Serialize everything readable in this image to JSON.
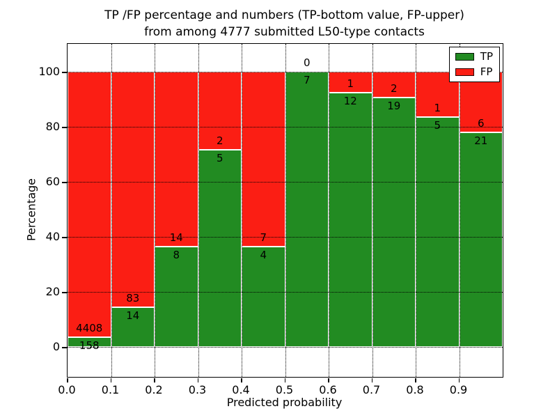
{
  "figure": {
    "title_line1": "TP /FP percentage and numbers (TP-bottom value, FP-upper)",
    "title_line2": "from among 4777 submitted L50-type contacts",
    "xlabel": "Predicted probability",
    "ylabel": "Percentage"
  },
  "chart_data": {
    "type": "bar",
    "stacked": true,
    "title": "TP /FP percentage and numbers (TP-bottom value, FP-upper)\nfrom among 4777 submitted L50-type contacts",
    "xlabel": "Predicted probability",
    "ylabel": "Percentage",
    "total_submitted": 4777,
    "bin_start": [
      0.0,
      0.1,
      0.2,
      0.3,
      0.4,
      0.5,
      0.6,
      0.7,
      0.8,
      0.9
    ],
    "bin_width": 0.1,
    "x_tick_labels": [
      "0.0",
      "0.1",
      "0.2",
      "0.3",
      "0.4",
      "0.5",
      "0.6",
      "0.7",
      "0.8",
      "0.9"
    ],
    "y_tick_values": [
      0,
      20,
      40,
      60,
      80,
      100
    ],
    "xlim": [
      0.0,
      1.0
    ],
    "ylim": [
      -11,
      110
    ],
    "grid": "dotted, drawn over bars",
    "legend": {
      "position": "upper-right",
      "entries": [
        "TP",
        "FP"
      ]
    },
    "colors": {
      "tp_green": "#228B22",
      "fp_red": "#FB1E14"
    },
    "series": [
      {
        "name": "TP",
        "color": "#228B22",
        "counts": [
          158,
          14,
          8,
          5,
          4,
          7,
          12,
          19,
          5,
          21
        ]
      },
      {
        "name": "FP",
        "color": "#FB1E14",
        "counts": [
          4408,
          83,
          14,
          2,
          7,
          0,
          1,
          2,
          1,
          6
        ]
      }
    ],
    "tp_percentages": [
      3.5,
      14.4,
      36.4,
      71.4,
      36.4,
      100.0,
      92.3,
      90.5,
      83.3,
      77.8
    ],
    "note": "Bars stack to 100%; count labels: TP below boundary, FP above boundary"
  }
}
